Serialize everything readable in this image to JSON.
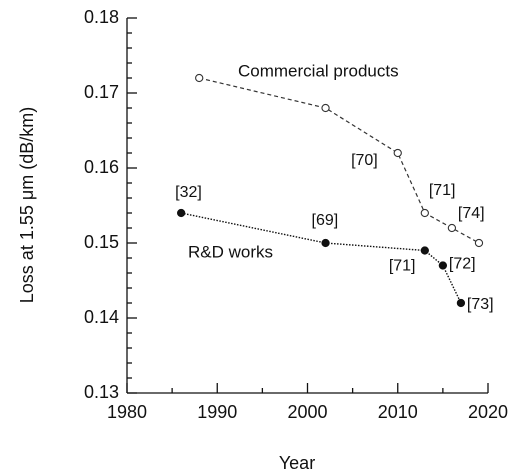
{
  "chart_data": {
    "type": "line",
    "xlabel": "Year",
    "ylabel": "Loss at 1.55 μm  (dB/km)",
    "xlim": [
      1980,
      2020
    ],
    "xticks": [
      1980,
      1990,
      2000,
      2010,
      2020
    ],
    "ylim": [
      0.13,
      0.18
    ],
    "yticks": [
      0.13,
      0.14,
      0.15,
      0.16,
      0.17,
      0.18
    ],
    "series": [
      {
        "name": "Commercial products",
        "color": "#333333",
        "line": "dashed",
        "marker": "open",
        "x": [
          1988,
          2002,
          2010,
          2013,
          2016,
          2019
        ],
        "values": [
          0.172,
          0.168,
          0.162,
          0.154,
          0.152,
          0.15
        ],
        "point_labels": [
          null,
          null,
          "[70]",
          "[71]",
          "[74]",
          null
        ]
      },
      {
        "name": "R&D works",
        "color": "#111111",
        "line": "dotted",
        "marker": "filled",
        "x": [
          1986,
          2002,
          2013,
          2015,
          2017
        ],
        "values": [
          0.154,
          0.15,
          0.149,
          0.147,
          0.142
        ],
        "point_labels": [
          "[32]",
          "[69]",
          "[71]",
          "[72]",
          "[73]"
        ]
      }
    ]
  }
}
